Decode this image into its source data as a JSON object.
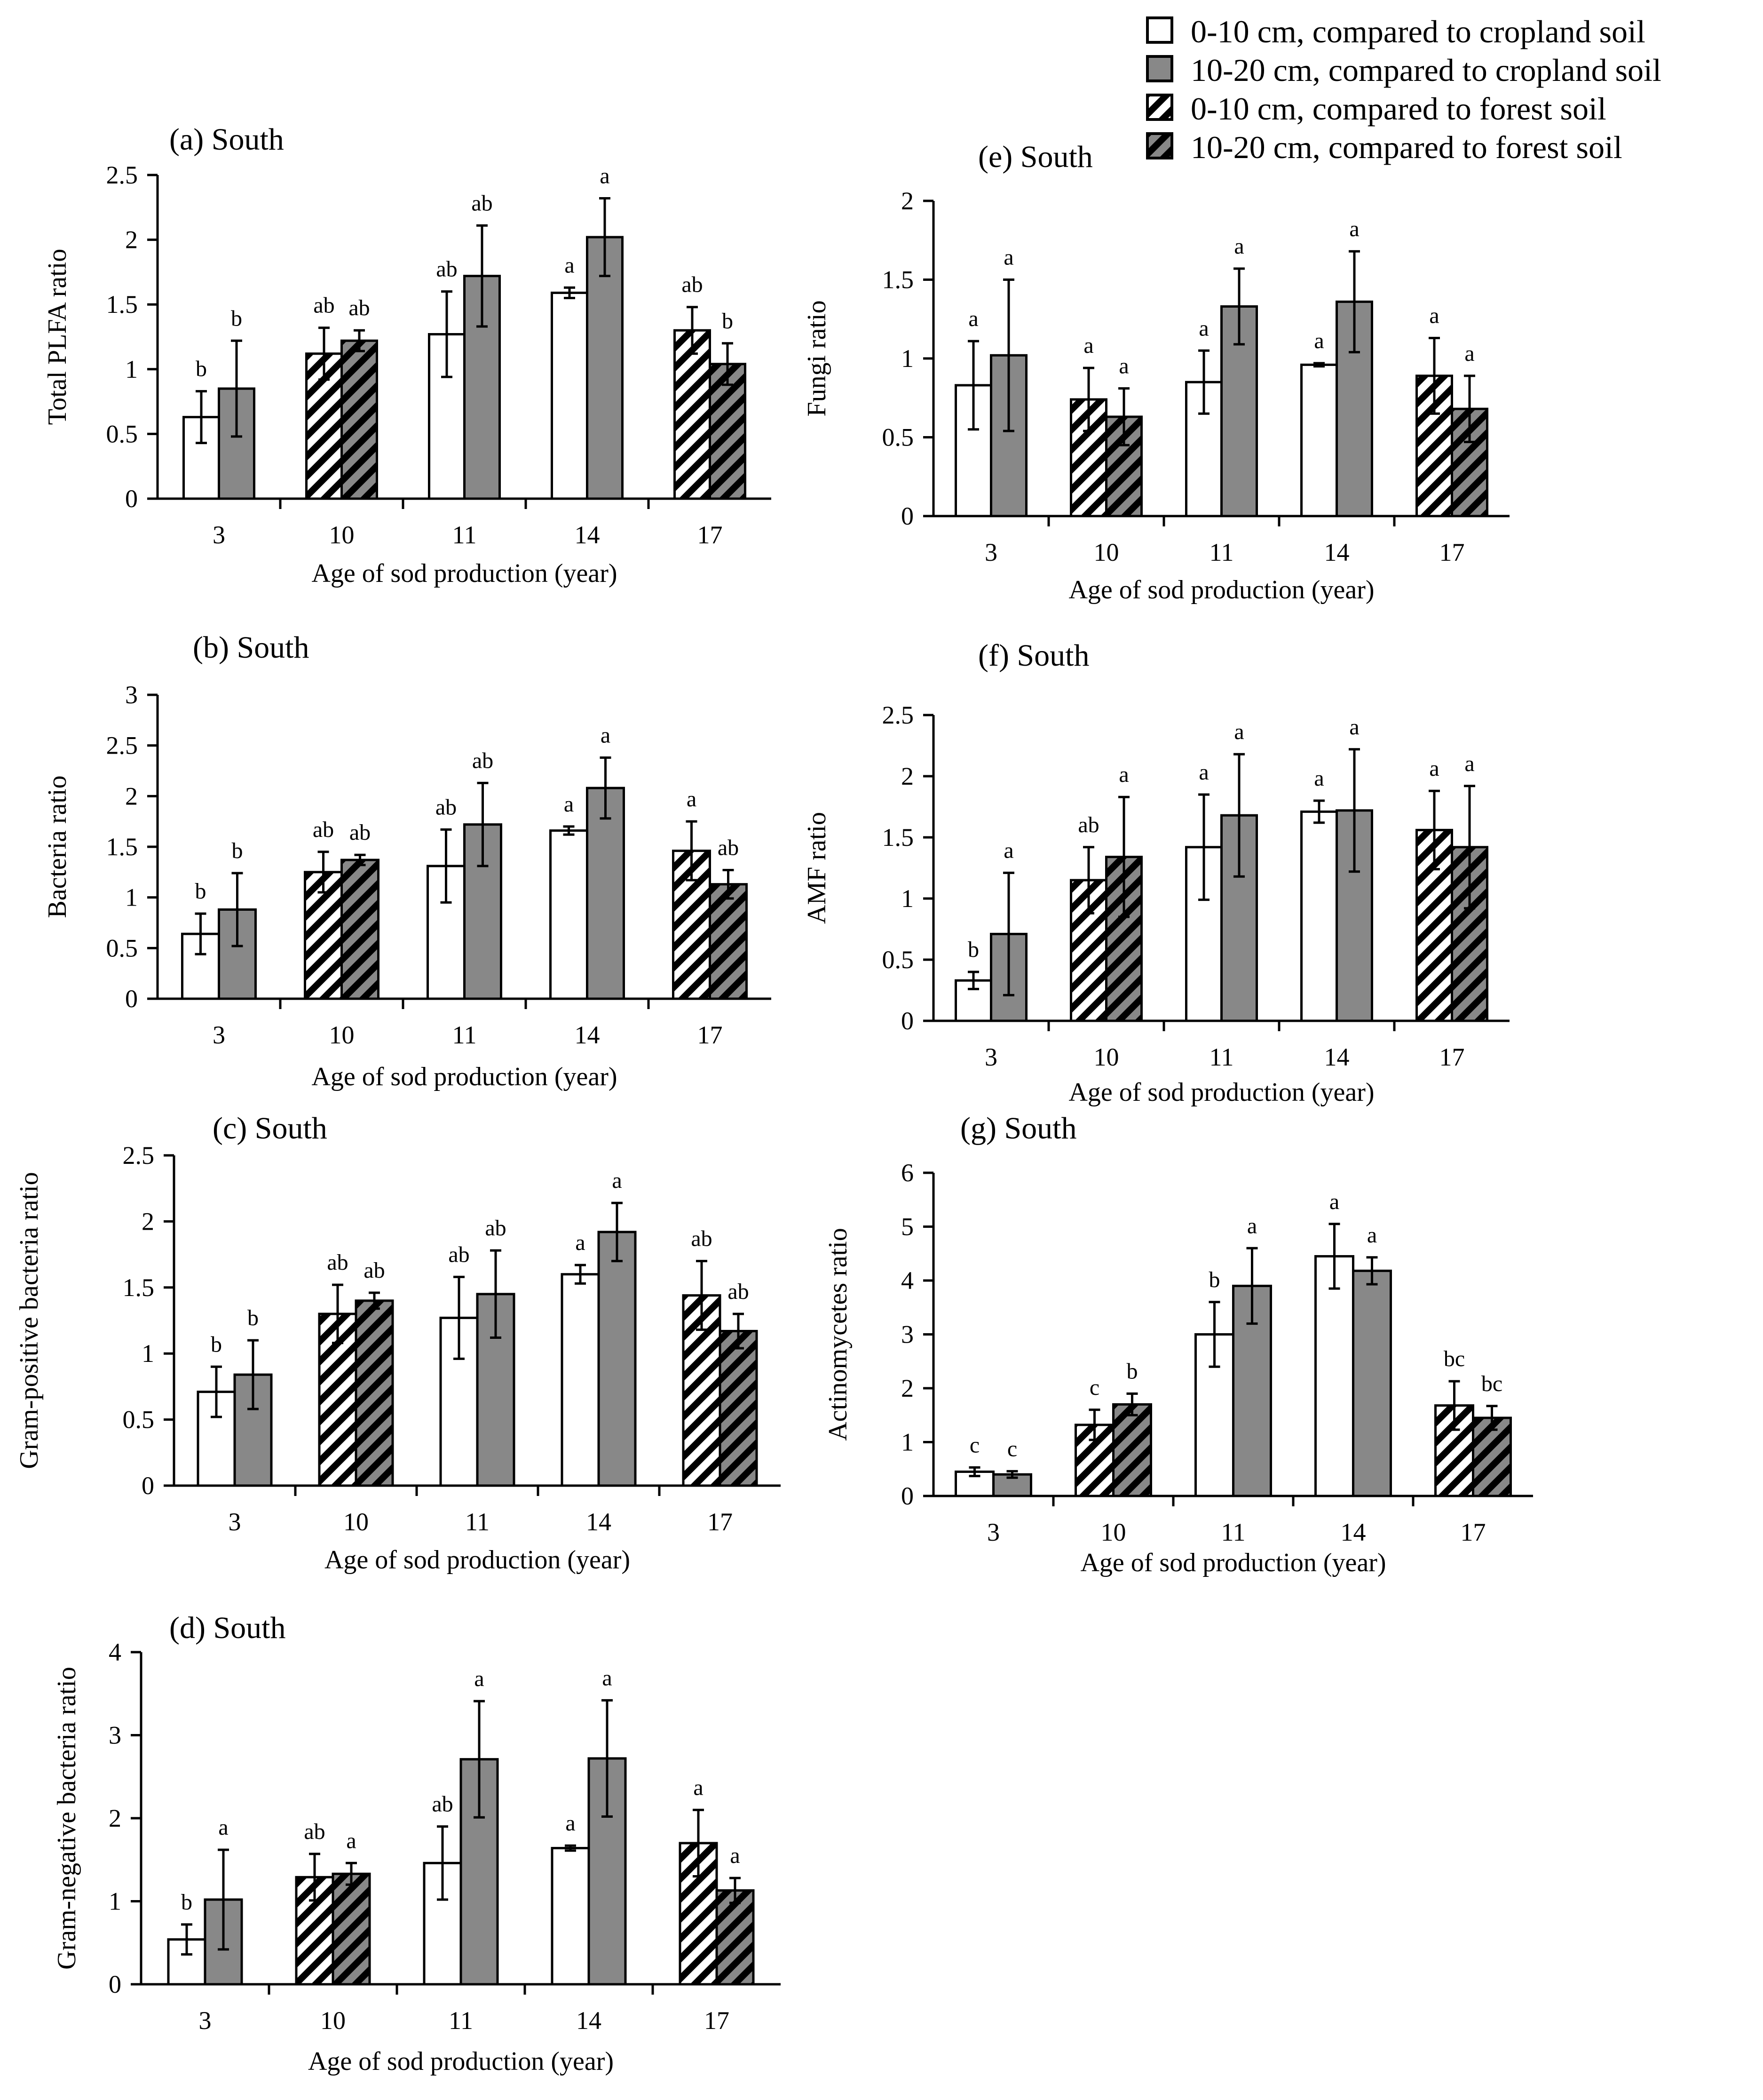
{
  "legend": {
    "items": [
      {
        "label": "0-10 cm, compared to cropland soil",
        "style": "open"
      },
      {
        "label": "10-20 cm, compared to cropland soil",
        "style": "gray"
      },
      {
        "label": "0-10 cm, compared to forest soil",
        "style": "hatch-white"
      },
      {
        "label": "10-20 cm, compared to forest soil",
        "style": "hatch-gray"
      }
    ]
  },
  "colors": {
    "gray_bar": "#888888",
    "open_bar": "#ffffff",
    "hatch": "#000000"
  },
  "chart_data": [
    {
      "id": "a",
      "type": "bar",
      "title": "(a) South",
      "xlabel": "Age of sod production (year)",
      "ylabel": "Total PLFA ratio",
      "ylim": [
        0,
        2.5
      ],
      "yticks": [
        "0",
        "0.5",
        "1",
        "1.5",
        "2",
        "2.5"
      ],
      "categories": [
        "3",
        "10",
        "11",
        "14",
        "17"
      ],
      "groups": [
        {
          "bars": [
            {
              "style": "open",
              "value": 0.63,
              "err": 0.2,
              "label": "b"
            },
            {
              "style": "gray",
              "value": 0.85,
              "err": 0.37,
              "label": "b"
            }
          ]
        },
        {
          "bars": [
            {
              "style": "hatch-white",
              "value": 1.12,
              "err": 0.2,
              "label": "ab"
            },
            {
              "style": "hatch-gray",
              "value": 1.22,
              "err": 0.08,
              "label": "ab"
            }
          ]
        },
        {
          "bars": [
            {
              "style": "open",
              "value": 1.27,
              "err": 0.33,
              "label": "ab"
            },
            {
              "style": "gray",
              "value": 1.72,
              "err": 0.39,
              "label": "ab"
            }
          ]
        },
        {
          "bars": [
            {
              "style": "open",
              "value": 1.59,
              "err": 0.04,
              "label": "a"
            },
            {
              "style": "gray",
              "value": 2.02,
              "err": 0.3,
              "label": "a"
            }
          ]
        },
        {
          "bars": [
            {
              "style": "hatch-white",
              "value": 1.3,
              "err": 0.18,
              "label": "ab"
            },
            {
              "style": "hatch-gray",
              "value": 1.04,
              "err": 0.16,
              "label": "b"
            }
          ]
        }
      ]
    },
    {
      "id": "b",
      "type": "bar",
      "title": "(b) South",
      "xlabel": "Age of sod production (year)",
      "ylabel": "Bacteria ratio",
      "ylim": [
        0,
        3
      ],
      "yticks": [
        "0",
        "0.5",
        "1",
        "1.5",
        "2",
        "2.5",
        "3"
      ],
      "categories": [
        "3",
        "10",
        "11",
        "14",
        "17"
      ],
      "groups": [
        {
          "bars": [
            {
              "style": "open",
              "value": 0.64,
              "err": 0.2,
              "label": "b"
            },
            {
              "style": "gray",
              "value": 0.88,
              "err": 0.36,
              "label": "b"
            }
          ]
        },
        {
          "bars": [
            {
              "style": "hatch-white",
              "value": 1.25,
              "err": 0.2,
              "label": "ab"
            },
            {
              "style": "hatch-gray",
              "value": 1.37,
              "err": 0.05,
              "label": "ab"
            }
          ]
        },
        {
          "bars": [
            {
              "style": "open",
              "value": 1.31,
              "err": 0.36,
              "label": "ab"
            },
            {
              "style": "gray",
              "value": 1.72,
              "err": 0.41,
              "label": "ab"
            }
          ]
        },
        {
          "bars": [
            {
              "style": "open",
              "value": 1.66,
              "err": 0.04,
              "label": "a"
            },
            {
              "style": "gray",
              "value": 2.08,
              "err": 0.3,
              "label": "a"
            }
          ]
        },
        {
          "bars": [
            {
              "style": "hatch-white",
              "value": 1.46,
              "err": 0.29,
              "label": "a"
            },
            {
              "style": "hatch-gray",
              "value": 1.13,
              "err": 0.14,
              "label": "ab"
            }
          ]
        }
      ]
    },
    {
      "id": "c",
      "type": "bar",
      "title": "(c) South",
      "xlabel": "Age of sod production (year)",
      "ylabel": "Gram-positive bacteria ratio",
      "ylim": [
        0,
        2.5
      ],
      "yticks": [
        "0",
        "0.5",
        "1",
        "1.5",
        "2",
        "2.5"
      ],
      "categories": [
        "3",
        "10",
        "11",
        "14",
        "17"
      ],
      "groups": [
        {
          "bars": [
            {
              "style": "open",
              "value": 0.71,
              "err": 0.19,
              "label": "b"
            },
            {
              "style": "gray",
              "value": 0.84,
              "err": 0.26,
              "label": "b"
            }
          ]
        },
        {
          "bars": [
            {
              "style": "hatch-white",
              "value": 1.3,
              "err": 0.22,
              "label": "ab"
            },
            {
              "style": "hatch-gray",
              "value": 1.4,
              "err": 0.06,
              "label": "ab"
            }
          ]
        },
        {
          "bars": [
            {
              "style": "open",
              "value": 1.27,
              "err": 0.31,
              "label": "ab"
            },
            {
              "style": "gray",
              "value": 1.45,
              "err": 0.33,
              "label": "ab"
            }
          ]
        },
        {
          "bars": [
            {
              "style": "open",
              "value": 1.6,
              "err": 0.07,
              "label": "a"
            },
            {
              "style": "gray",
              "value": 1.92,
              "err": 0.22,
              "label": "a"
            }
          ]
        },
        {
          "bars": [
            {
              "style": "hatch-white",
              "value": 1.44,
              "err": 0.26,
              "label": "ab"
            },
            {
              "style": "hatch-gray",
              "value": 1.17,
              "err": 0.13,
              "label": "ab"
            }
          ]
        }
      ]
    },
    {
      "id": "d",
      "type": "bar",
      "title": "(d) South",
      "xlabel": "Age of sod production (year)",
      "ylabel": "Gram-negative bacteria ratio",
      "ylim": [
        0,
        4
      ],
      "yticks": [
        "0",
        "1",
        "2",
        "3",
        "4"
      ],
      "categories": [
        "3",
        "10",
        "11",
        "14",
        "17"
      ],
      "groups": [
        {
          "bars": [
            {
              "style": "open",
              "value": 0.54,
              "err": 0.18,
              "label": "b"
            },
            {
              "style": "gray",
              "value": 1.02,
              "err": 0.6,
              "label": "a"
            }
          ]
        },
        {
          "bars": [
            {
              "style": "hatch-white",
              "value": 1.29,
              "err": 0.28,
              "label": "ab"
            },
            {
              "style": "hatch-gray",
              "value": 1.33,
              "err": 0.13,
              "label": "a"
            }
          ]
        },
        {
          "bars": [
            {
              "style": "open",
              "value": 1.46,
              "err": 0.44,
              "label": "ab"
            },
            {
              "style": "gray",
              "value": 2.71,
              "err": 0.7,
              "label": "a"
            }
          ]
        },
        {
          "bars": [
            {
              "style": "open",
              "value": 1.64,
              "err": 0.03,
              "label": "a"
            },
            {
              "style": "gray",
              "value": 2.72,
              "err": 0.7,
              "label": "a"
            }
          ]
        },
        {
          "bars": [
            {
              "style": "hatch-white",
              "value": 1.7,
              "err": 0.4,
              "label": "a"
            },
            {
              "style": "hatch-gray",
              "value": 1.13,
              "err": 0.15,
              "label": "a"
            }
          ]
        }
      ]
    },
    {
      "id": "e",
      "type": "bar",
      "title": "(e) South",
      "xlabel": "Age of sod production (year)",
      "ylabel": "Fungi ratio",
      "ylim": [
        0,
        2
      ],
      "yticks": [
        "0",
        "0.5",
        "1",
        "1.5",
        "2"
      ],
      "categories": [
        "3",
        "10",
        "11",
        "14",
        "17"
      ],
      "groups": [
        {
          "bars": [
            {
              "style": "open",
              "value": 0.83,
              "err": 0.28,
              "label": "a"
            },
            {
              "style": "gray",
              "value": 1.02,
              "err": 0.48,
              "label": "a"
            }
          ]
        },
        {
          "bars": [
            {
              "style": "hatch-white",
              "value": 0.74,
              "err": 0.2,
              "label": "a"
            },
            {
              "style": "hatch-gray",
              "value": 0.63,
              "err": 0.18,
              "label": "a"
            }
          ]
        },
        {
          "bars": [
            {
              "style": "open",
              "value": 0.85,
              "err": 0.2,
              "label": "a"
            },
            {
              "style": "gray",
              "value": 1.33,
              "err": 0.24,
              "label": "a"
            }
          ]
        },
        {
          "bars": [
            {
              "style": "open",
              "value": 0.96,
              "err": 0.01,
              "label": "a"
            },
            {
              "style": "gray",
              "value": 1.36,
              "err": 0.32,
              "label": "a"
            }
          ]
        },
        {
          "bars": [
            {
              "style": "hatch-white",
              "value": 0.89,
              "err": 0.24,
              "label": "a"
            },
            {
              "style": "hatch-gray",
              "value": 0.68,
              "err": 0.21,
              "label": "a"
            }
          ]
        }
      ]
    },
    {
      "id": "f",
      "type": "bar",
      "title": "(f) South",
      "xlabel": "Age of sod production (year)",
      "ylabel": "AMF ratio",
      "ylim": [
        0,
        2.5
      ],
      "yticks": [
        "0",
        "0.5",
        "1",
        "1.5",
        "2",
        "2.5"
      ],
      "categories": [
        "3",
        "10",
        "11",
        "14",
        "17"
      ],
      "groups": [
        {
          "bars": [
            {
              "style": "open",
              "value": 0.33,
              "err": 0.07,
              "label": "b"
            },
            {
              "style": "gray",
              "value": 0.71,
              "err": 0.5,
              "label": "a"
            }
          ]
        },
        {
          "bars": [
            {
              "style": "hatch-white",
              "value": 1.15,
              "err": 0.27,
              "label": "ab"
            },
            {
              "style": "hatch-gray",
              "value": 1.34,
              "err": 0.49,
              "label": "a"
            }
          ]
        },
        {
          "bars": [
            {
              "style": "open",
              "value": 1.42,
              "err": 0.43,
              "label": "a"
            },
            {
              "style": "gray",
              "value": 1.68,
              "err": 0.5,
              "label": "a"
            }
          ]
        },
        {
          "bars": [
            {
              "style": "open",
              "value": 1.71,
              "err": 0.09,
              "label": "a"
            },
            {
              "style": "gray",
              "value": 1.72,
              "err": 0.5,
              "label": "a"
            }
          ]
        },
        {
          "bars": [
            {
              "style": "hatch-white",
              "value": 1.56,
              "err": 0.32,
              "label": "a"
            },
            {
              "style": "hatch-gray",
              "value": 1.42,
              "err": 0.5,
              "label": "a"
            }
          ]
        }
      ]
    },
    {
      "id": "g",
      "type": "bar",
      "title": "(g) South",
      "xlabel": "Age of sod production (year)",
      "ylabel": "Actinomycetes ratio",
      "ylim": [
        0,
        6
      ],
      "yticks": [
        "0",
        "1",
        "2",
        "3",
        "4",
        "5",
        "6"
      ],
      "categories": [
        "3",
        "10",
        "11",
        "14",
        "17"
      ],
      "groups": [
        {
          "bars": [
            {
              "style": "open",
              "value": 0.45,
              "err": 0.08,
              "label": "c"
            },
            {
              "style": "gray",
              "value": 0.4,
              "err": 0.06,
              "label": "c"
            }
          ]
        },
        {
          "bars": [
            {
              "style": "hatch-white",
              "value": 1.32,
              "err": 0.28,
              "label": "c"
            },
            {
              "style": "hatch-gray",
              "value": 1.7,
              "err": 0.2,
              "label": "b"
            }
          ]
        },
        {
          "bars": [
            {
              "style": "open",
              "value": 3.0,
              "err": 0.6,
              "label": "b"
            },
            {
              "style": "gray",
              "value": 3.9,
              "err": 0.7,
              "label": "a"
            }
          ]
        },
        {
          "bars": [
            {
              "style": "open",
              "value": 4.45,
              "err": 0.6,
              "label": "a"
            },
            {
              "style": "gray",
              "value": 4.18,
              "err": 0.25,
              "label": "a"
            }
          ]
        },
        {
          "bars": [
            {
              "style": "hatch-white",
              "value": 1.68,
              "err": 0.45,
              "label": "bc"
            },
            {
              "style": "hatch-gray",
              "value": 1.45,
              "err": 0.22,
              "label": "bc"
            }
          ]
        }
      ]
    }
  ]
}
